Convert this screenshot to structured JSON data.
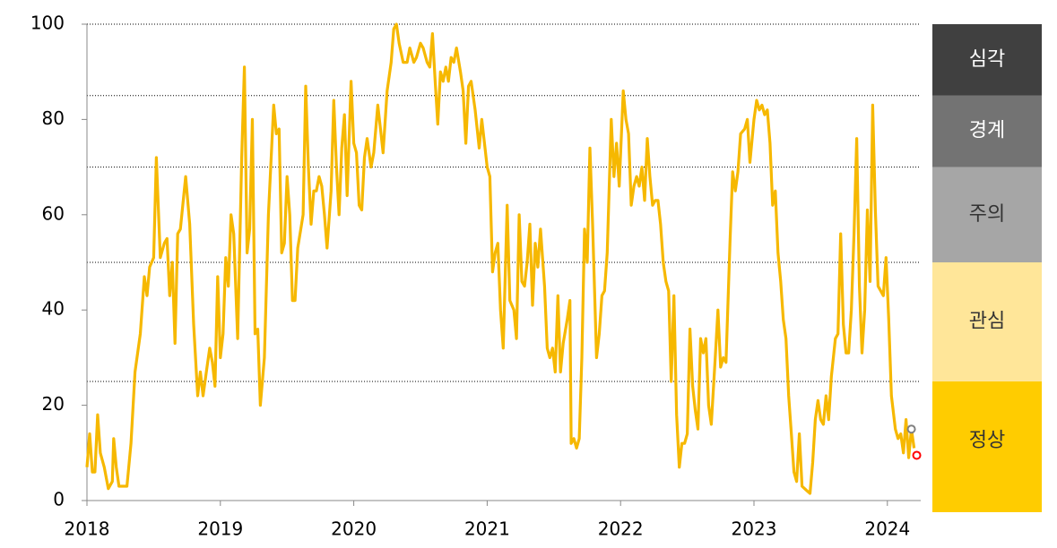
{
  "chart_data": {
    "type": "line",
    "x": [
      2018.0,
      2018.02,
      2018.04,
      2018.06,
      2018.08,
      2018.1,
      2018.13,
      2018.16,
      2018.19,
      2018.2,
      2018.22,
      2018.24,
      2018.27,
      2018.3,
      2018.33,
      2018.36,
      2018.4,
      2018.43,
      2018.45,
      2018.47,
      2018.5,
      2018.52,
      2018.55,
      2018.58,
      2018.6,
      2018.62,
      2018.64,
      2018.66,
      2018.68,
      2018.7,
      2018.74,
      2018.77,
      2018.8,
      2018.83,
      2018.85,
      2018.87,
      2018.9,
      2018.92,
      2018.94,
      2018.96,
      2018.98,
      2019.0,
      2019.02,
      2019.04,
      2019.06,
      2019.08,
      2019.1,
      2019.13,
      2019.16,
      2019.18,
      2019.2,
      2019.22,
      2019.24,
      2019.26,
      2019.28,
      2019.3,
      2019.33,
      2019.36,
      2019.4,
      2019.42,
      2019.44,
      2019.46,
      2019.48,
      2019.5,
      2019.52,
      2019.54,
      2019.56,
      2019.58,
      2019.62,
      2019.64,
      2019.66,
      2019.68,
      2019.7,
      2019.72,
      2019.74,
      2019.76,
      2019.78,
      2019.8,
      2019.83,
      2019.85,
      2019.87,
      2019.89,
      2019.91,
      2019.93,
      2019.95,
      2019.98,
      2020.0,
      2020.02,
      2020.04,
      2020.06,
      2020.08,
      2020.1,
      2020.13,
      2020.15,
      2020.18,
      2020.2,
      2020.22,
      2020.25,
      2020.28,
      2020.3,
      2020.32,
      2020.34,
      2020.37,
      2020.4,
      2020.42,
      2020.45,
      2020.47,
      2020.5,
      2020.52,
      2020.55,
      2020.57,
      2020.59,
      2020.61,
      2020.63,
      2020.65,
      2020.67,
      2020.69,
      2020.71,
      2020.73,
      2020.75,
      2020.77,
      2020.8,
      2020.82,
      2020.84,
      2020.86,
      2020.88,
      2020.91,
      2020.94,
      2020.96,
      2021.0,
      2021.02,
      2021.04,
      2021.06,
      2021.08,
      2021.1,
      2021.12,
      2021.15,
      2021.17,
      2021.2,
      2021.22,
      2021.24,
      2021.26,
      2021.28,
      2021.3,
      2021.32,
      2021.34,
      2021.36,
      2021.38,
      2021.4,
      2021.43,
      2021.45,
      2021.47,
      2021.49,
      2021.51,
      2021.53,
      2021.55,
      2021.57,
      2021.6,
      2021.62,
      2021.63,
      2021.65,
      2021.67,
      2021.69,
      2021.71,
      2021.73,
      2021.75,
      2021.77,
      2021.79,
      2021.82,
      2021.84,
      2021.86,
      2021.88,
      2021.9,
      2021.93,
      2021.95,
      2021.97,
      2021.99,
      2022.02,
      2022.04,
      2022.06,
      2022.08,
      2022.1,
      2022.12,
      2022.14,
      2022.16,
      2022.18,
      2022.2,
      2022.22,
      2022.24,
      2022.26,
      2022.28,
      2022.3,
      2022.32,
      2022.34,
      2022.36,
      2022.38,
      2022.4,
      2022.42,
      2022.44,
      2022.46,
      2022.48,
      2022.5,
      2022.52,
      2022.54,
      2022.56,
      2022.58,
      2022.6,
      2022.62,
      2022.64,
      2022.66,
      2022.68,
      2022.71,
      2022.73,
      2022.75,
      2022.77,
      2022.79,
      2022.82,
      2022.84,
      2022.86,
      2022.88,
      2022.9,
      2022.93,
      2022.95,
      2022.97,
      2023.0,
      2023.02,
      2023.04,
      2023.06,
      2023.08,
      2023.1,
      2023.12,
      2023.14,
      2023.16,
      2023.18,
      2023.2,
      2023.22,
      2023.24,
      2023.26,
      2023.28,
      2023.3,
      2023.32,
      2023.34,
      2023.36,
      2023.38,
      2023.4,
      2023.42,
      2023.44,
      2023.46,
      2023.48,
      2023.5,
      2023.52,
      2023.54,
      2023.56,
      2023.58,
      2023.61,
      2023.63,
      2023.65,
      2023.67,
      2023.69,
      2023.71,
      2023.73,
      2023.75,
      2023.77,
      2023.79,
      2023.81,
      2023.83,
      2023.85,
      2023.87,
      2023.89,
      2023.91,
      2023.93,
      2023.95,
      2023.97,
      2023.99,
      2024.01,
      2024.03,
      2024.06,
      2024.08,
      2024.1,
      2024.12,
      2024.14,
      2024.16,
      2024.18,
      2024.2
    ],
    "values": [
      7,
      14,
      6,
      6,
      18,
      10,
      7,
      2.5,
      4,
      13,
      7,
      3,
      3,
      3,
      12,
      27,
      35,
      47,
      43,
      49,
      51,
      72,
      51,
      54,
      55,
      43,
      50,
      33,
      56,
      57,
      68,
      58,
      37,
      22,
      27,
      22,
      28,
      32,
      29,
      24,
      47,
      30,
      35,
      51,
      45,
      60,
      56,
      34,
      72,
      91,
      52,
      57,
      80,
      35,
      36,
      20,
      30,
      60,
      83,
      77,
      78,
      52,
      54,
      68,
      60,
      42,
      42,
      53,
      60,
      87,
      70,
      58,
      65,
      65,
      68,
      66,
      60,
      53,
      65,
      84,
      70,
      60,
      74,
      81,
      64,
      88,
      75,
      73,
      62,
      61,
      72,
      76,
      70,
      73,
      83,
      78,
      73,
      86,
      92,
      99,
      100,
      96,
      92,
      92,
      95,
      92,
      93,
      96,
      95,
      92,
      91,
      98,
      88,
      79,
      90,
      88,
      91,
      88,
      93,
      92,
      95,
      90,
      86,
      75,
      87,
      88,
      82,
      74,
      80,
      70,
      68,
      48,
      52,
      54,
      40,
      32,
      62,
      42,
      40,
      34,
      60,
      46,
      45,
      50,
      58,
      41,
      54,
      49,
      57,
      45,
      32,
      30,
      32,
      27,
      43,
      27,
      33,
      38,
      42,
      12,
      13,
      11,
      13,
      30,
      57,
      50,
      74,
      58,
      30,
      35,
      43,
      44,
      52,
      80,
      68,
      75,
      66,
      86,
      80,
      77,
      62,
      66,
      68,
      66,
      70,
      63,
      76,
      68,
      62,
      63,
      63,
      58,
      50,
      46,
      44,
      25,
      43,
      18,
      7,
      12,
      12,
      14,
      36,
      24,
      19,
      15,
      34,
      31,
      34,
      20,
      16,
      30,
      40,
      28,
      30,
      29,
      54,
      69,
      65,
      69,
      77,
      78,
      80,
      71,
      80,
      84,
      82,
      83,
      81,
      82,
      75,
      62,
      65,
      52,
      46,
      38,
      34,
      22,
      14,
      6,
      4,
      14,
      3,
      2.5,
      2,
      1.5,
      8,
      17,
      21,
      17,
      16,
      22,
      17,
      26,
      34,
      35,
      56,
      37,
      31,
      31,
      40,
      56,
      76,
      45,
      31,
      40,
      61,
      46,
      83,
      61,
      45,
      44,
      43,
      51,
      38,
      22,
      15,
      13,
      14,
      10,
      17,
      9,
      15,
      11
    ],
    "color": "#f6b800",
    "markers": [
      {
        "x": 2024.18,
        "y": 15,
        "color": "#808080"
      },
      {
        "x": 2024.22,
        "y": 9.5,
        "color": "#ff0000"
      }
    ],
    "xlim": [
      2018,
      2024.25
    ],
    "xticks": [
      2018,
      2019,
      2020,
      2021,
      2022,
      2023,
      2024
    ],
    "ylim": [
      0,
      100
    ],
    "yticks": [
      0,
      20,
      40,
      60,
      80,
      100
    ],
    "bands": [
      {
        "label": "정상",
        "from": 0,
        "to": 25,
        "color": "#ffcc00",
        "text_color": "#333333"
      },
      {
        "label": "관심",
        "from": 25,
        "to": 50,
        "color": "#ffe699",
        "text_color": "#333333"
      },
      {
        "label": "주의",
        "from": 50,
        "to": 70,
        "color": "#a6a6a6",
        "text_color": "#333333"
      },
      {
        "label": "경계",
        "from": 70,
        "to": 85,
        "color": "#737373",
        "text_color": "#ffffff"
      },
      {
        "label": "심각",
        "from": 85,
        "to": 100,
        "color": "#404040",
        "text_color": "#ffffff"
      }
    ]
  }
}
